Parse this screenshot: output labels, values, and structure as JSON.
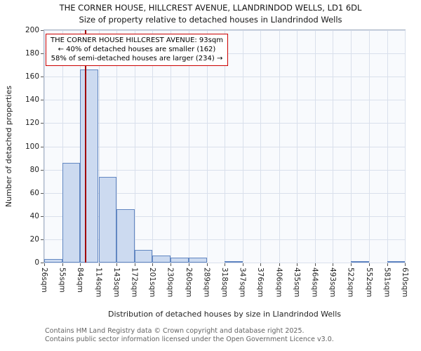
{
  "title": "THE CORNER HOUSE, HILLCREST AVENUE, LLANDRINDOD WELLS, LD1 6DL",
  "subtitle": "Size of property relative to detached houses in Llandrindod Wells",
  "x_axis_label": "Distribution of detached houses by size in Llandrindod Wells",
  "y_axis_label": "Number of detached properties",
  "annotation": {
    "line1": "THE CORNER HOUSE HILLCREST AVENUE: 93sqm",
    "line2": "← 40% of detached houses are smaller (162)",
    "line3": "58% of semi-detached houses are larger (234) →"
  },
  "footer": {
    "line1": "Contains HM Land Registry data © Crown copyright and database right 2025.",
    "line2": "Contains public sector information licensed under the Open Government Licence v3.0."
  },
  "chart_data": {
    "type": "bar",
    "title": "THE CORNER HOUSE, HILLCREST AVENUE, LLANDRINDOD WELLS, LD1 6DL",
    "xlabel": "Distribution of detached houses by size in Llandrindod Wells",
    "ylabel": "Number of detached properties",
    "bin_edges_sqm": [
      26,
      55,
      84,
      114,
      143,
      172,
      201,
      230,
      260,
      289,
      318,
      347,
      376,
      406,
      435,
      464,
      493,
      522,
      552,
      581,
      610
    ],
    "x_tick_labels": [
      "26sqm",
      "55sqm",
      "84sqm",
      "114sqm",
      "143sqm",
      "172sqm",
      "201sqm",
      "230sqm",
      "260sqm",
      "289sqm",
      "318sqm",
      "347sqm",
      "376sqm",
      "406sqm",
      "435sqm",
      "464sqm",
      "493sqm",
      "522sqm",
      "552sqm",
      "581sqm",
      "610sqm"
    ],
    "values": [
      3,
      86,
      166,
      74,
      46,
      11,
      6,
      4,
      4,
      0,
      1,
      0,
      0,
      0,
      0,
      0,
      0,
      1,
      0,
      1
    ],
    "marker_sqm": 93,
    "x_range": [
      26,
      610
    ],
    "ylim": [
      0,
      200
    ],
    "y_ticks": [
      0,
      20,
      40,
      60,
      80,
      100,
      120,
      140,
      160,
      180,
      200
    ],
    "grid": true,
    "legend": "none",
    "colors": {
      "bar_fill": "#ccdaf0",
      "bar_border": "#6287c2",
      "marker_line": "#a00000",
      "grid_line": "#d9e0ec",
      "annotation_border": "#cc0000",
      "plot_background": "#f8fafd"
    }
  }
}
